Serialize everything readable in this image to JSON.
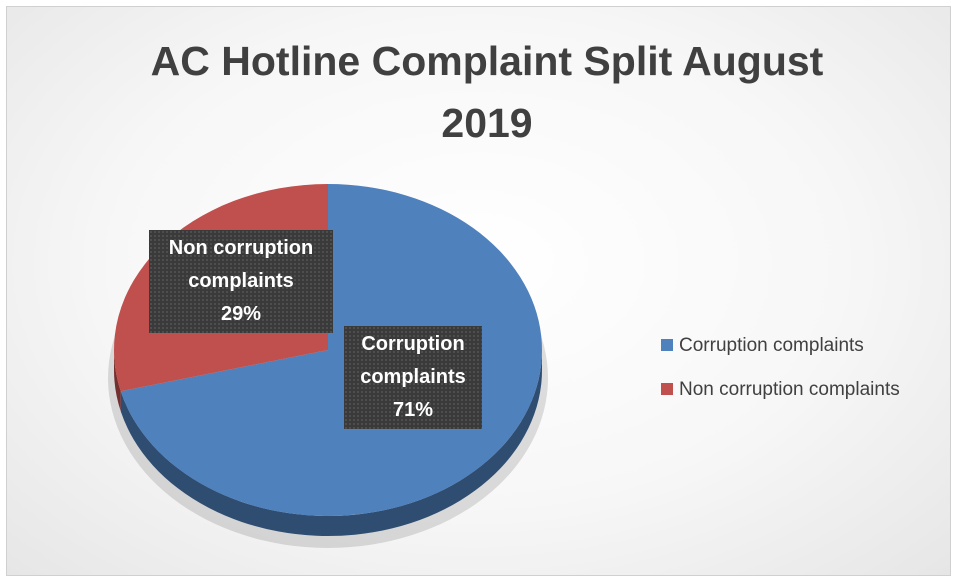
{
  "chart_data": {
    "type": "pie",
    "title": "AC Hotline Complaint Split August 2019",
    "categories": [
      "Corruption complaints",
      "Non corruption complaints"
    ],
    "values": [
      71,
      29
    ],
    "value_labels": [
      "71%",
      "29%"
    ],
    "colors": [
      "#4f81bd",
      "#c0504d"
    ],
    "legend": "right"
  }
}
